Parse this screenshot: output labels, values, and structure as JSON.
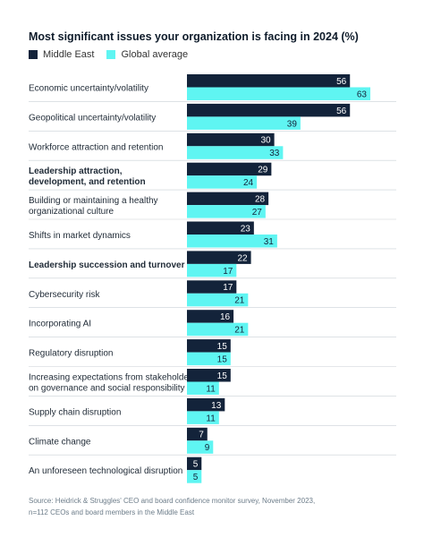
{
  "chart_data": {
    "type": "bar",
    "orientation": "horizontal",
    "title": "Most significant issues your organization is facing in 2024 (%)",
    "categories": [
      "Economic uncertainty/volatility",
      "Geopolitical uncertainty/volatility",
      "Workforce attraction and retention",
      "Leadership attraction,\ndevelopment, and retention",
      "Building or maintaining a healthy\norganizational culture",
      "Shifts in market dynamics",
      "Leadership succession and turnover",
      "Cybersecurity risk",
      "Incorporating AI",
      "Regulatory disruption",
      "Increasing expectations from stakeholders\non governance and social responsibility",
      "Supply chain disruption",
      "Climate change",
      "An unforeseen technological disruption"
    ],
    "bold_categories": [
      3,
      6
    ],
    "series": [
      {
        "name": "Middle East",
        "color": "#13233a",
        "values": [
          56,
          56,
          30,
          29,
          28,
          23,
          22,
          17,
          16,
          15,
          15,
          13,
          7,
          5
        ]
      },
      {
        "name": "Global average",
        "color": "#5ff5f2",
        "values": [
          63,
          39,
          33,
          24,
          27,
          31,
          17,
          21,
          21,
          15,
          11,
          11,
          9,
          5
        ]
      }
    ],
    "xlim": [
      0,
      63
    ],
    "grid": false,
    "legend_position": "top-left"
  },
  "source": "Source: Heidrick & Struggles' CEO and board confidence monitor survey, November 2023, n=112 CEOs and board members in the Middle East"
}
